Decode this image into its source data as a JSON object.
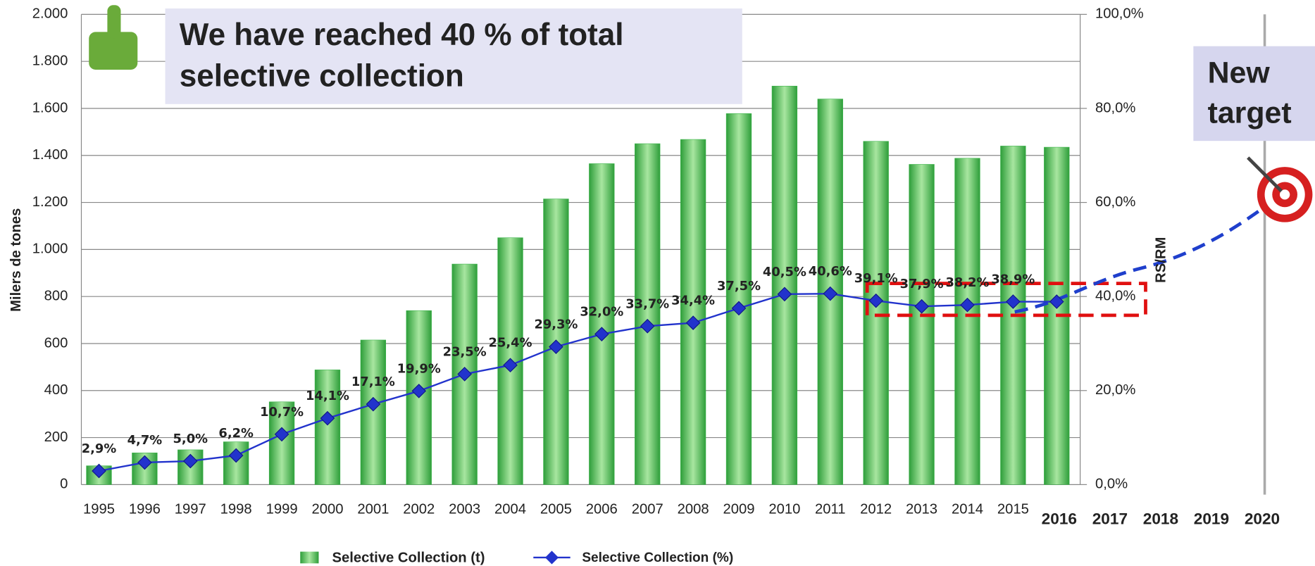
{
  "chart_data": {
    "type": "bar-line",
    "headline": [
      "We have reached  40 % of total",
      "selective collection"
    ],
    "callout": [
      "New",
      "target"
    ],
    "ylabel": "Milers de tones",
    "y2label": "RS/RM",
    "categories": [
      "1995",
      "1996",
      "1997",
      "1998",
      "1999",
      "2000",
      "2001",
      "2002",
      "2003",
      "2004",
      "2005",
      "2006",
      "2007",
      "2008",
      "2009",
      "2010",
      "2011",
      "2012",
      "2013",
      "2014",
      "2015",
      "2016",
      "2017",
      "2018",
      "2019",
      "2020"
    ],
    "series": [
      {
        "name": "Selective Collection (t)",
        "color": "#3cb44b",
        "values": [
          80,
          135,
          148,
          182,
          352,
          488,
          615,
          740,
          938,
          1050,
          1215,
          1365,
          1450,
          1468,
          1578,
          1695,
          1640,
          1460,
          1362,
          1388,
          1440,
          1435,
          null,
          null,
          null,
          null
        ]
      },
      {
        "name": "Selective Collection (%)",
        "color": "#2233cc",
        "axis": "y2",
        "values": [
          2.9,
          4.7,
          5.0,
          6.2,
          10.7,
          14.1,
          17.1,
          19.9,
          23.5,
          25.4,
          29.3,
          32.0,
          33.7,
          34.4,
          37.5,
          40.5,
          40.6,
          39.1,
          37.9,
          38.2,
          38.9,
          38.9,
          null,
          null,
          null,
          null
        ],
        "value_labels": [
          "2,9%",
          "4,7%",
          "5,0%",
          "6,2%",
          "10,7%",
          "14,1%",
          "17,1%",
          "19,9%",
          "23,5%",
          "25,4%",
          "29,3%",
          "32,0%",
          "33,7%",
          "34,4%",
          "37,5%",
          "40,5%",
          "40,6%",
          "39,1%",
          "37,9%",
          "38,2%",
          "38,9%",
          null,
          null,
          null,
          null,
          null
        ]
      }
    ],
    "ylim": [
      0,
      2000
    ],
    "yticks": [
      0,
      200,
      400,
      600,
      800,
      {
        "value": 1000,
        "label": "1.000"
      },
      {
        "value": 1200,
        "label": "1.200"
      },
      {
        "value": 1400,
        "label": "1.400"
      },
      {
        "value": 1600,
        "label": "1.600"
      },
      {
        "value": 1800,
        "label": "1.800"
      },
      {
        "value": 2000,
        "label": "2.000"
      }
    ],
    "y2lim": [
      0,
      100
    ],
    "y2ticks": [
      {
        "value": 0,
        "label": "0,0%"
      },
      {
        "value": 20,
        "label": "20,0%"
      },
      {
        "value": 40,
        "label": "40,0%"
      },
      {
        "value": 60,
        "label": "60,0%"
      },
      {
        "value": 80,
        "label": "80,0%"
      },
      {
        "value": 100,
        "label": "100,0%"
      }
    ],
    "grid": true,
    "legend": "bottom"
  }
}
